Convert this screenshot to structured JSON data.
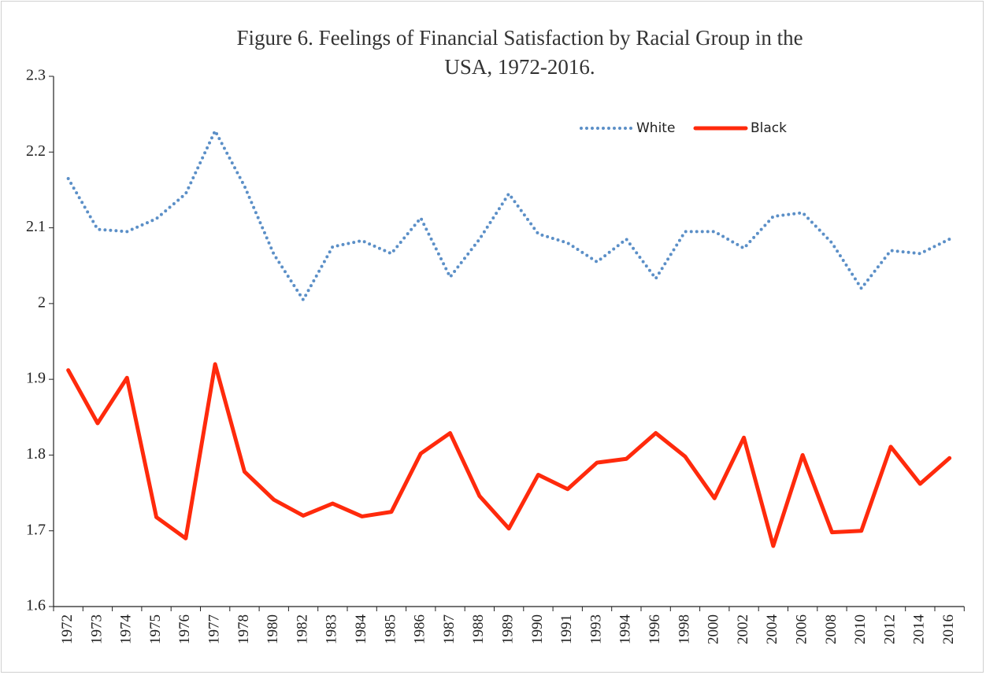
{
  "chart_data": {
    "type": "line",
    "title": "Figure 6.  Feelings of Financial Satisfaction by Racial Group in the USA, 1972-2016.",
    "categories": [
      "1972",
      "1973",
      "1974",
      "1975",
      "1976",
      "1977",
      "1978",
      "1980",
      "1982",
      "1983",
      "1984",
      "1985",
      "1986",
      "1987",
      "1988",
      "1989",
      "1990",
      "1991",
      "1993",
      "1994",
      "1996",
      "1998",
      "2000",
      "2002",
      "2004",
      "2006",
      "2008",
      "2010",
      "2012",
      "2014",
      "2016"
    ],
    "series": [
      {
        "name": "White",
        "color": "#5b8fc7",
        "dash": "dotted",
        "values": [
          2.165,
          2.098,
          2.095,
          2.112,
          2.145,
          2.228,
          2.155,
          2.065,
          2.005,
          2.075,
          2.083,
          2.066,
          2.113,
          2.035,
          2.085,
          2.145,
          2.092,
          2.08,
          2.055,
          2.085,
          2.033,
          2.095,
          2.095,
          2.073,
          2.115,
          2.12,
          2.08,
          2.02,
          2.07,
          2.066,
          2.085
        ]
      },
      {
        "name": "Black",
        "color": "#ff2a0c",
        "dash": "solid",
        "values": [
          1.912,
          1.842,
          1.902,
          1.718,
          1.69,
          1.92,
          1.778,
          1.741,
          1.72,
          1.736,
          1.719,
          1.725,
          1.802,
          1.829,
          1.746,
          1.703,
          1.774,
          1.755,
          1.79,
          1.795,
          1.829,
          1.798,
          1.743,
          1.823,
          1.68,
          1.8,
          1.698,
          1.7,
          1.811,
          1.762,
          1.796
        ]
      }
    ],
    "ylim": [
      1.6,
      2.3
    ],
    "yticks": [
      1.6,
      1.7,
      1.8,
      1.9,
      2,
      2.1,
      2.2,
      2.3
    ],
    "legend": "top-right",
    "grid": false
  }
}
